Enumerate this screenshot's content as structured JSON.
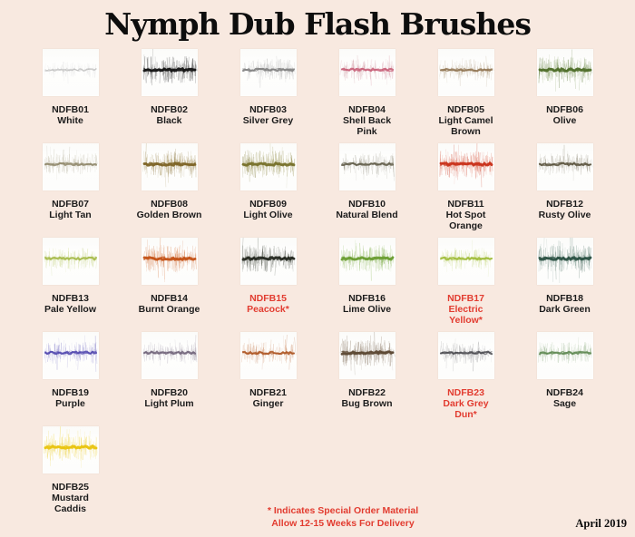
{
  "page": {
    "title": "Nymph Dub Flash Brushes",
    "footnote_line1": "* Indicates Special Order Material",
    "footnote_line2": "Allow 12-15 Weeks For Delivery",
    "date": "April 2019",
    "background_color": "#f8e9e0",
    "special_order_color": "#e23c30",
    "text_color": "#1c1c1c"
  },
  "products": [
    {
      "code": "NDFB01",
      "name": "White",
      "special": false,
      "core": "#a6a6a6",
      "hair": "#bdbdbd",
      "weight": "light"
    },
    {
      "code": "NDFB02",
      "name": "Black",
      "special": false,
      "core": "#141414",
      "hair": "#2e2e2e",
      "weight": "heavy"
    },
    {
      "code": "NDFB03",
      "name": "Silver Grey",
      "special": false,
      "core": "#7d7d7d",
      "hair": "#999999",
      "weight": "medium"
    },
    {
      "code": "NDFB04",
      "name": "Shell Back\nPink",
      "special": false,
      "core": "#c75d76",
      "hair": "#b8707a",
      "weight": "medium"
    },
    {
      "code": "NDFB05",
      "name": "Light Camel\nBrown",
      "special": false,
      "core": "#8f7350",
      "hair": "#a6906c",
      "weight": "medium"
    },
    {
      "code": "NDFB06",
      "name": "Olive",
      "special": false,
      "core": "#4f6e2a",
      "hair": "#6d8c45",
      "weight": "heavy"
    },
    {
      "code": "NDFB07",
      "name": "Light Tan",
      "special": false,
      "core": "#8f876a",
      "hair": "#a8a186",
      "weight": "medium"
    },
    {
      "code": "NDFB08",
      "name": "Golden Brown",
      "special": false,
      "core": "#7d6426",
      "hair": "#96803f",
      "weight": "heavy"
    },
    {
      "code": "NDFB09",
      "name": "Light Olive",
      "special": false,
      "core": "#78722c",
      "hair": "#918b42",
      "weight": "heavy"
    },
    {
      "code": "NDFB10",
      "name": "Natural Blend",
      "special": false,
      "core": "#5f5b47",
      "hair": "#7d7963",
      "weight": "medium"
    },
    {
      "code": "NDFB11",
      "name": "Hot Spot\nOrange",
      "special": false,
      "core": "#c9311a",
      "hair": "#d64a2d",
      "weight": "heavy"
    },
    {
      "code": "NDFB12",
      "name": "Rusty Olive",
      "special": false,
      "core": "#57503a",
      "hair": "#6e664b",
      "weight": "medium"
    },
    {
      "code": "NDFB13",
      "name": "Pale Yellow",
      "special": false,
      "core": "#a3b845",
      "hair": "#b9cc5e",
      "weight": "medium"
    },
    {
      "code": "NDFB14",
      "name": "Burnt Orange",
      "special": false,
      "core": "#c45318",
      "hair": "#d4692a",
      "weight": "heavy"
    },
    {
      "code": "NDFB15",
      "name": "Peacock*",
      "special": true,
      "core": "#262a22",
      "hair": "#434a3c",
      "weight": "heavy"
    },
    {
      "code": "NDFB16",
      "name": "Lime Olive",
      "special": false,
      "core": "#6b9e33",
      "hair": "#84b54d",
      "weight": "heavy"
    },
    {
      "code": "NDFB17",
      "name": "Electric\nYellow*",
      "special": true,
      "core": "#9cba32",
      "hair": "#b3cc4c",
      "weight": "medium"
    },
    {
      "code": "NDFB18",
      "name": "Dark Green",
      "special": false,
      "core": "#2c5244",
      "hair": "#477061",
      "weight": "heavy"
    },
    {
      "code": "NDFB19",
      "name": "Purple",
      "special": false,
      "core": "#4c43ad",
      "hair": "#6a63c2",
      "weight": "medium"
    },
    {
      "code": "NDFB20",
      "name": "Light Plum",
      "special": false,
      "core": "#6e6278",
      "hair": "#8b8094",
      "weight": "medium"
    },
    {
      "code": "NDFB21",
      "name": "Ginger",
      "special": false,
      "core": "#ad5420",
      "hair": "#c16a33",
      "weight": "medium"
    },
    {
      "code": "NDFB22",
      "name": "Bug Brown",
      "special": false,
      "core": "#5c4833",
      "hair": "#77614a",
      "weight": "heavy"
    },
    {
      "code": "NDFB23",
      "name": "Dark Grey\nDun*",
      "special": true,
      "core": "#4a4a4f",
      "hair": "#666669",
      "weight": "medium"
    },
    {
      "code": "NDFB24",
      "name": "Sage",
      "special": false,
      "core": "#5d8750",
      "hair": "#7aa06b",
      "weight": "medium"
    },
    {
      "code": "NDFB25",
      "name": "Mustard\nCaddis",
      "special": false,
      "core": "#e9c40f",
      "hair": "#f0d542",
      "weight": "heavy"
    }
  ]
}
